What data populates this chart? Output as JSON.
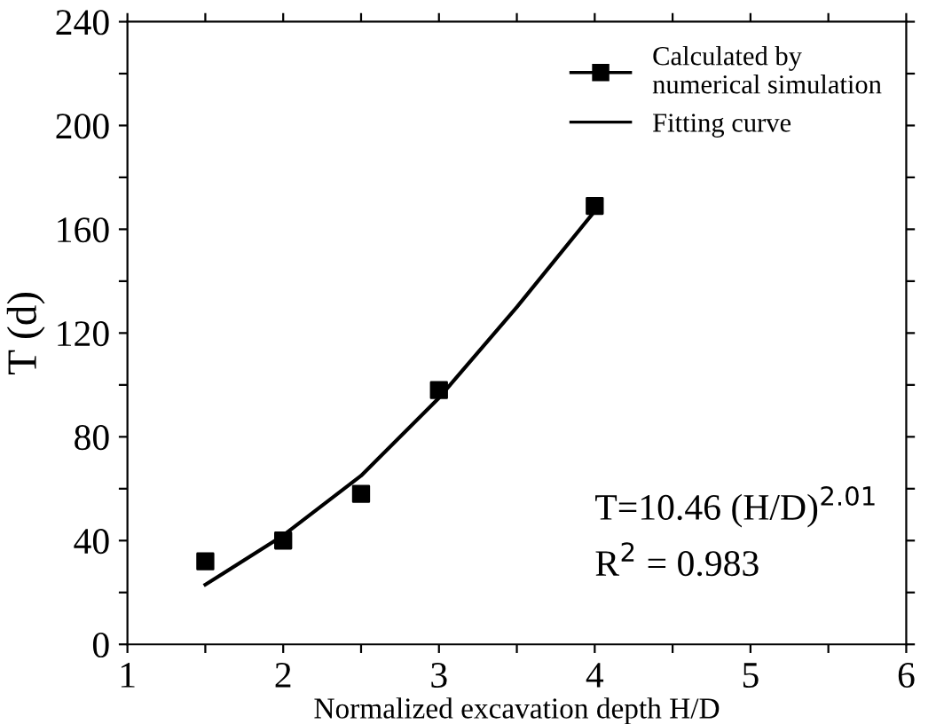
{
  "chart_data": {
    "type": "scatter",
    "xlabel": "Normalized excavation depth H/D",
    "ylabel": "T (d)",
    "xlim": [
      1,
      6
    ],
    "xticks": [
      1,
      {
        "value": 1.5,
        "label": null
      },
      2,
      {
        "value": 2.5,
        "label": null
      },
      3,
      {
        "value": 3.5,
        "label": null
      },
      4,
      {
        "value": 4.5,
        "label": null
      },
      5,
      {
        "value": 5.5,
        "label": null
      },
      6
    ],
    "ylim": [
      0,
      240
    ],
    "yticks": [
      0,
      {
        "value": 20,
        "label": null
      },
      40,
      {
        "value": 60,
        "label": null
      },
      80,
      {
        "value": 100,
        "label": null
      },
      120,
      {
        "value": 140,
        "label": null
      },
      160,
      {
        "value": 180,
        "label": null
      },
      200,
      {
        "value": 220,
        "label": null
      },
      240
    ],
    "grid": false,
    "legend": "top right",
    "series": [
      {
        "name": "Calculated by\nnumerical simulation",
        "marker": "square",
        "color": "#000000",
        "x": [
          1.5,
          2,
          2.5,
          3,
          4
        ],
        "values": [
          32,
          40,
          58,
          98,
          169
        ]
      },
      {
        "name": "Fitting curve",
        "type": "line",
        "marker": "none",
        "line_style": "solid",
        "color": "#000000",
        "x": [
          1.5,
          2,
          2.5,
          3,
          3.5,
          4
        ],
        "values": [
          23,
          42,
          65,
          95,
          130,
          167
        ]
      }
    ],
    "annotations": [
      "T=10.46 (H/D)$^{2.01}$",
      "R$^{2}$ = 0.983"
    ]
  }
}
